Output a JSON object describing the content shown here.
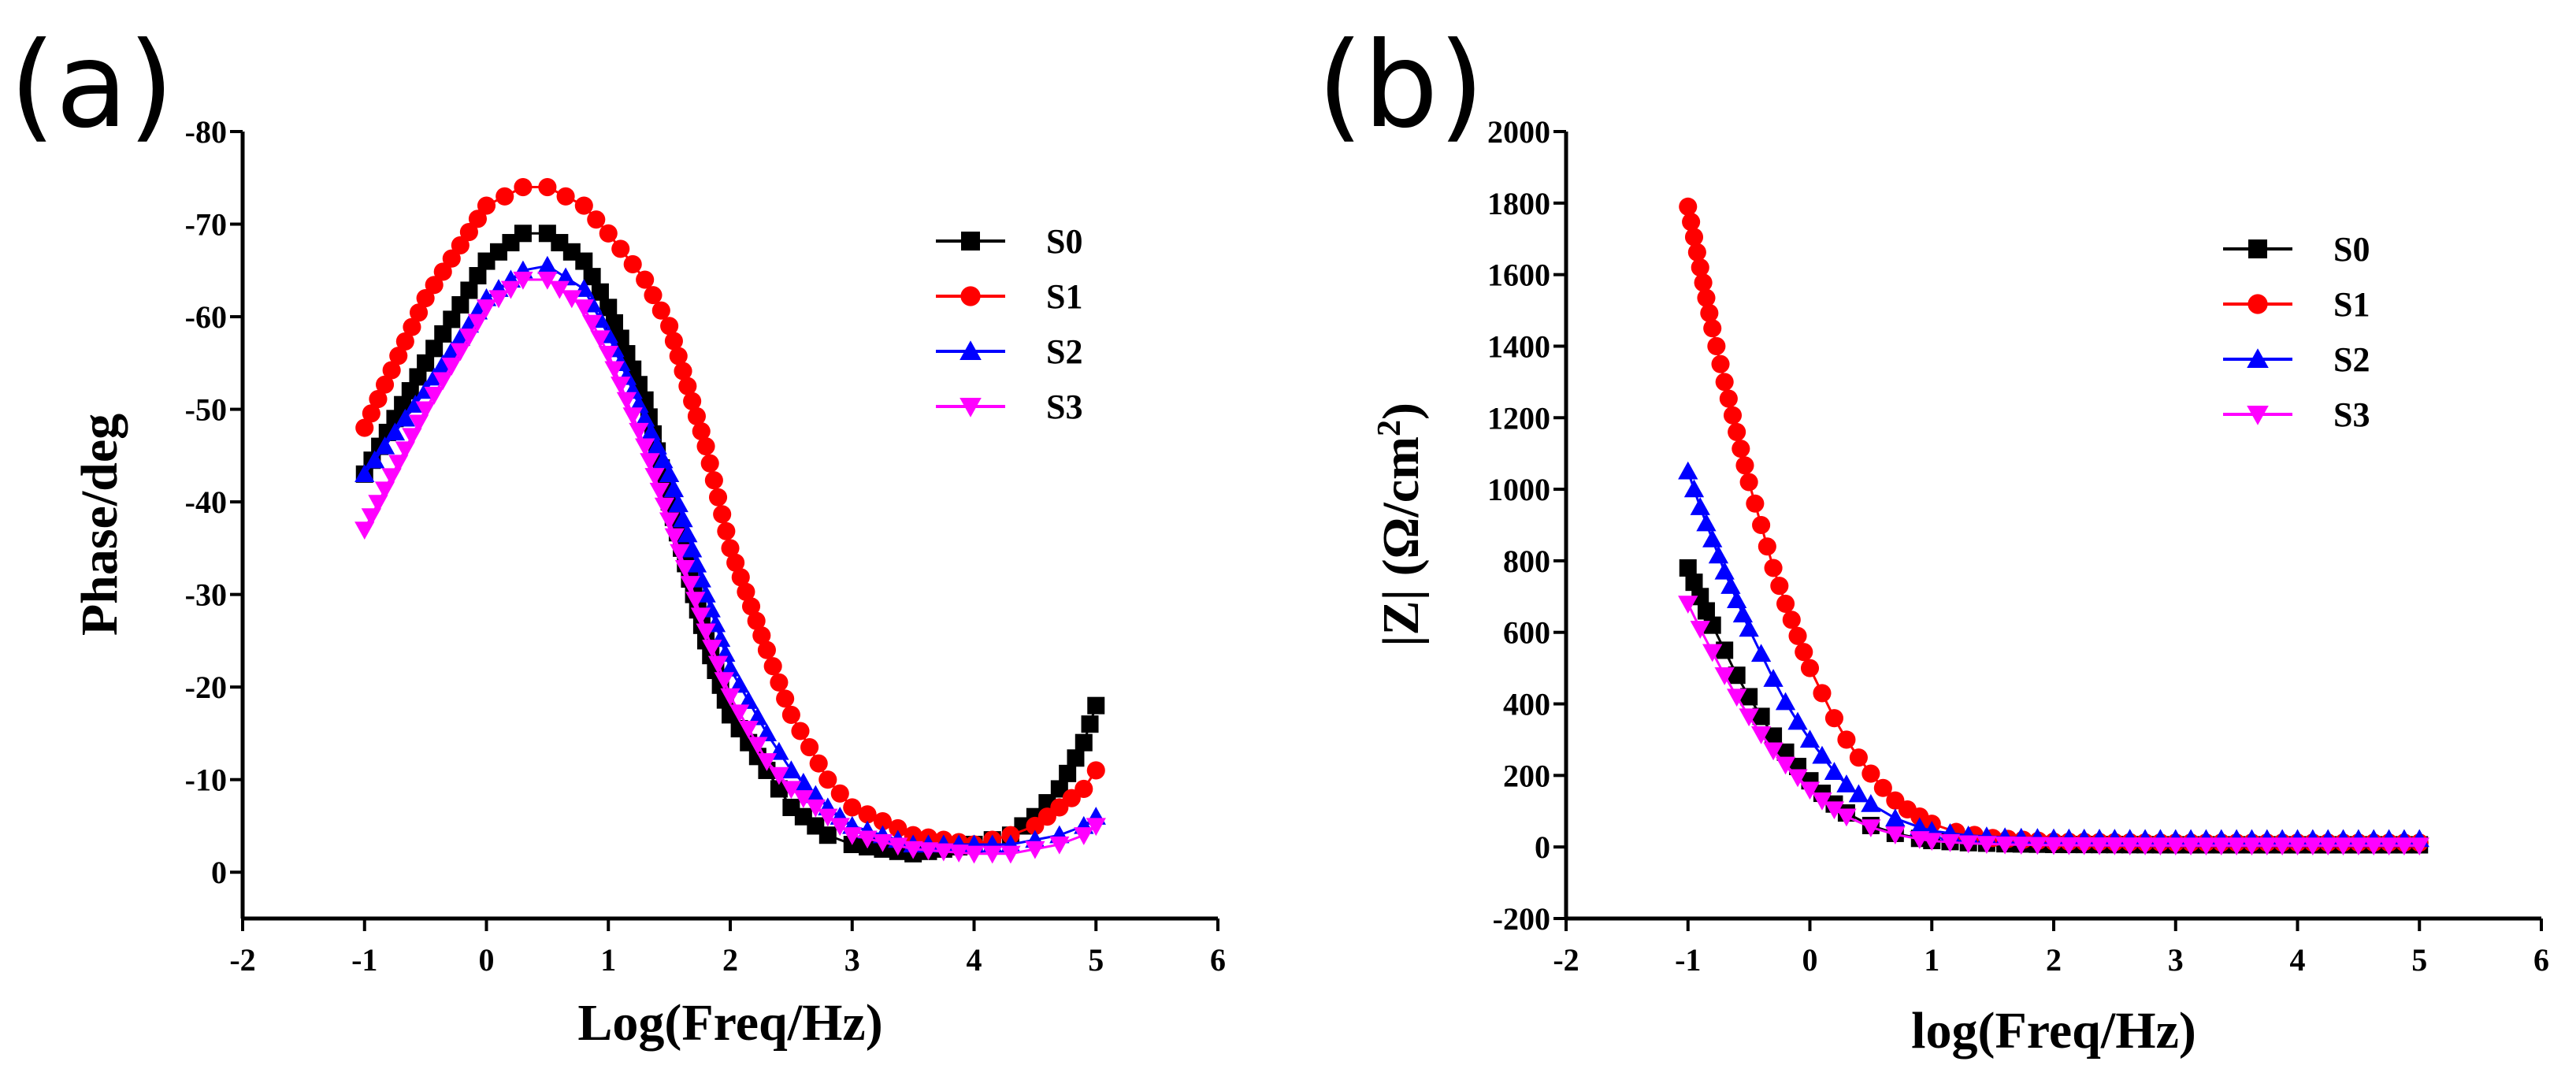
{
  "figure": {
    "panel_a_label": "(a)",
    "panel_b_label": "(b)"
  },
  "chart_data": [
    {
      "id": "a",
      "type": "scatter",
      "xlabel": "Log(Freq/Hz)",
      "ylabel": "Phase/deg",
      "xlim": [
        -2,
        6
      ],
      "ylim": [
        5,
        -80
      ],
      "xticks": [
        -2,
        -1,
        0,
        1,
        2,
        3,
        4,
        5,
        6
      ],
      "yticks": [
        0,
        -10,
        -20,
        -30,
        -40,
        -50,
        -60,
        -70,
        -80
      ],
      "legend_position": "top-right",
      "series": [
        {
          "name": "S0",
          "color": "#000000",
          "marker": "square",
          "points": [
            [
              -1,
              -43
            ],
            [
              -0.5,
              -55
            ],
            [
              0,
              -66
            ],
            [
              0.3,
              -69
            ],
            [
              0.5,
              -69
            ],
            [
              0.8,
              -66
            ],
            [
              1,
              -61
            ],
            [
              1.3,
              -51
            ],
            [
              1.5,
              -40
            ],
            [
              1.8,
              -25
            ],
            [
              2,
              -17
            ],
            [
              2.3,
              -11
            ],
            [
              2.5,
              -7
            ],
            [
              2.8,
              -4
            ],
            [
              3,
              -3
            ],
            [
              3.5,
              -2
            ],
            [
              4,
              -3
            ],
            [
              4.3,
              -4
            ],
            [
              4.5,
              -6
            ],
            [
              4.7,
              -9
            ],
            [
              4.9,
              -14
            ],
            [
              5,
              -18
            ]
          ]
        },
        {
          "name": "S1",
          "color": "#ff0000",
          "marker": "circle",
          "points": [
            [
              -1,
              -48
            ],
            [
              -0.5,
              -62
            ],
            [
              0,
              -72
            ],
            [
              0.3,
              -74
            ],
            [
              0.5,
              -74
            ],
            [
              0.8,
              -72
            ],
            [
              1,
              -69
            ],
            [
              1.3,
              -64
            ],
            [
              1.5,
              -59
            ],
            [
              1.8,
              -46
            ],
            [
              2,
              -35
            ],
            [
              2.3,
              -24
            ],
            [
              2.5,
              -17
            ],
            [
              2.8,
              -10
            ],
            [
              3,
              -7
            ],
            [
              3.5,
              -4
            ],
            [
              4,
              -3
            ],
            [
              4.3,
              -4
            ],
            [
              4.5,
              -5
            ],
            [
              4.7,
              -7
            ],
            [
              4.9,
              -9
            ],
            [
              5,
              -11
            ]
          ]
        },
        {
          "name": "S2",
          "color": "#0000ff",
          "marker": "triangle-up",
          "points": [
            [
              -1,
              -43
            ],
            [
              -0.5,
              -52
            ],
            [
              0,
              -62
            ],
            [
              0.3,
              -65
            ],
            [
              0.5,
              -65.5
            ],
            [
              0.8,
              -63
            ],
            [
              1,
              -58
            ],
            [
              1.3,
              -49
            ],
            [
              1.5,
              -43
            ],
            [
              1.8,
              -30
            ],
            [
              2,
              -22
            ],
            [
              2.3,
              -15
            ],
            [
              2.5,
              -11
            ],
            [
              2.8,
              -7
            ],
            [
              3,
              -5
            ],
            [
              3.5,
              -3
            ],
            [
              4,
              -3
            ],
            [
              4.3,
              -3
            ],
            [
              4.5,
              -3.5
            ],
            [
              4.7,
              -4
            ],
            [
              4.9,
              -5
            ],
            [
              5,
              -6
            ]
          ]
        },
        {
          "name": "S3",
          "color": "#ff00ff",
          "marker": "triangle-down",
          "points": [
            [
              -1,
              -37
            ],
            [
              -0.5,
              -50
            ],
            [
              0,
              -61
            ],
            [
              0.3,
              -64
            ],
            [
              0.5,
              -64
            ],
            [
              0.8,
              -61
            ],
            [
              1,
              -56
            ],
            [
              1.3,
              -46
            ],
            [
              1.5,
              -38
            ],
            [
              1.8,
              -26
            ],
            [
              2,
              -19
            ],
            [
              2.3,
              -12
            ],
            [
              2.5,
              -9
            ],
            [
              2.8,
              -6
            ],
            [
              3,
              -4
            ],
            [
              3.5,
              -2.5
            ],
            [
              4,
              -2
            ],
            [
              4.3,
              -2
            ],
            [
              4.5,
              -2.5
            ],
            [
              4.7,
              -3
            ],
            [
              4.9,
              -4
            ],
            [
              5,
              -5
            ]
          ]
        }
      ]
    },
    {
      "id": "b",
      "type": "scatter",
      "xlabel": "log(Freq/Hz)",
      "ylabel": "|Z| (Ω/cm",
      "ylabel_superscript": "2",
      "ylabel_close": ")",
      "xlim": [
        -2,
        6
      ],
      "ylim": [
        -200,
        2000
      ],
      "xticks": [
        -2,
        -1,
        0,
        1,
        2,
        3,
        4,
        5,
        6
      ],
      "yticks": [
        -200,
        0,
        200,
        400,
        600,
        800,
        1000,
        1200,
        1400,
        1600,
        1800,
        2000
      ],
      "legend_position": "top-right",
      "series": [
        {
          "name": "S0",
          "color": "#000000",
          "marker": "square",
          "points": [
            [
              -1,
              780
            ],
            [
              -0.9,
              700
            ],
            [
              -0.8,
              620
            ],
            [
              -0.7,
              550
            ],
            [
              -0.6,
              480
            ],
            [
              -0.5,
              420
            ],
            [
              -0.4,
              365
            ],
            [
              -0.3,
              310
            ],
            [
              -0.2,
              265
            ],
            [
              -0.1,
              225
            ],
            [
              0,
              185
            ],
            [
              0.1,
              150
            ],
            [
              0.2,
              120
            ],
            [
              0.3,
              95
            ],
            [
              0.5,
              60
            ],
            [
              0.7,
              38
            ],
            [
              0.9,
              24
            ],
            [
              1,
              18
            ],
            [
              1.3,
              12
            ],
            [
              1.6,
              9
            ],
            [
              2,
              7
            ],
            [
              3,
              6
            ],
            [
              4,
              6
            ],
            [
              5,
              6
            ]
          ]
        },
        {
          "name": "S1",
          "color": "#ff0000",
          "marker": "circle",
          "points": [
            [
              -1,
              1790
            ],
            [
              -0.9,
              1620
            ],
            [
              -0.8,
              1450
            ],
            [
              -0.7,
              1300
            ],
            [
              -0.6,
              1160
            ],
            [
              -0.5,
              1020
            ],
            [
              -0.4,
              900
            ],
            [
              -0.3,
              780
            ],
            [
              -0.2,
              680
            ],
            [
              -0.1,
              590
            ],
            [
              0,
              500
            ],
            [
              0.1,
              430
            ],
            [
              0.2,
              360
            ],
            [
              0.3,
              300
            ],
            [
              0.4,
              250
            ],
            [
              0.5,
              205
            ],
            [
              0.6,
              165
            ],
            [
              0.7,
              130
            ],
            [
              0.8,
              105
            ],
            [
              0.9,
              85
            ],
            [
              1,
              65
            ],
            [
              1.2,
              42
            ],
            [
              1.5,
              25
            ],
            [
              2,
              15
            ],
            [
              3,
              12
            ],
            [
              4,
              12
            ],
            [
              5,
              12
            ]
          ]
        },
        {
          "name": "S2",
          "color": "#0000ff",
          "marker": "triangle-up",
          "points": [
            [
              -1,
              1050
            ],
            [
              -0.9,
              950
            ],
            [
              -0.8,
              860
            ],
            [
              -0.7,
              770
            ],
            [
              -0.6,
              690
            ],
            [
              -0.5,
              610
            ],
            [
              -0.4,
              540
            ],
            [
              -0.3,
              470
            ],
            [
              -0.2,
              405
            ],
            [
              -0.1,
              350
            ],
            [
              0,
              300
            ],
            [
              0.1,
              255
            ],
            [
              0.2,
              210
            ],
            [
              0.3,
              175
            ],
            [
              0.5,
              120
            ],
            [
              0.7,
              80
            ],
            [
              0.9,
              55
            ],
            [
              1,
              45
            ],
            [
              1.3,
              32
            ],
            [
              1.6,
              27
            ],
            [
              2,
              24
            ],
            [
              3,
              22
            ],
            [
              4,
              22
            ],
            [
              5,
              22
            ]
          ]
        },
        {
          "name": "S3",
          "color": "#ff00ff",
          "marker": "triangle-down",
          "points": [
            [
              -1,
              680
            ],
            [
              -0.9,
              610
            ],
            [
              -0.8,
              545
            ],
            [
              -0.7,
              480
            ],
            [
              -0.6,
              420
            ],
            [
              -0.5,
              365
            ],
            [
              -0.4,
              315
            ],
            [
              -0.3,
              270
            ],
            [
              -0.2,
              230
            ],
            [
              -0.1,
              195
            ],
            [
              0,
              160
            ],
            [
              0.1,
              130
            ],
            [
              0.2,
              105
            ],
            [
              0.3,
              85
            ],
            [
              0.5,
              55
            ],
            [
              0.7,
              35
            ],
            [
              0.9,
              22
            ],
            [
              1,
              17
            ],
            [
              1.3,
              10
            ],
            [
              1.6,
              7
            ],
            [
              2,
              5
            ],
            [
              3,
              4
            ],
            [
              4,
              4
            ],
            [
              5,
              4
            ]
          ]
        }
      ]
    }
  ]
}
